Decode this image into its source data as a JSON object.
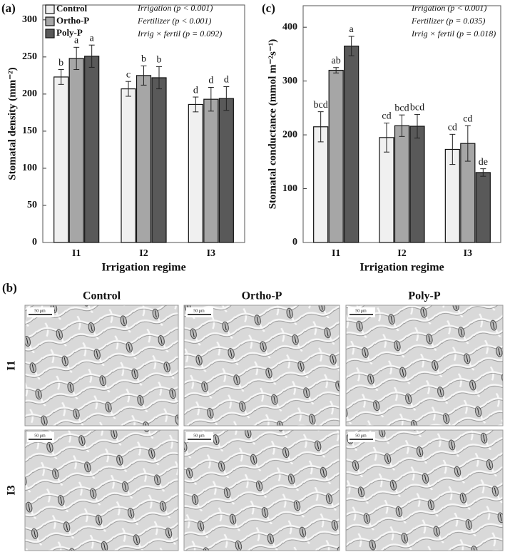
{
  "chart_data": [
    {
      "type": "bar",
      "panel_label": "(a)",
      "ylabel": "Stomatal density (mm⁻²)",
      "xlabel": "Irrigation regime",
      "categories": [
        "I1",
        "I2",
        "I3"
      ],
      "series": [
        {
          "name": "Control",
          "color": "#f0f0f0",
          "values": [
            223,
            207,
            186
          ],
          "errors": [
            10,
            10,
            10
          ],
          "letters": [
            "b",
            "c",
            "d"
          ]
        },
        {
          "name": "Ortho-P",
          "color": "#a6a6a6",
          "values": [
            248,
            225,
            193
          ],
          "errors": [
            15,
            13,
            16
          ],
          "letters": [
            "a",
            "b",
            "d"
          ]
        },
        {
          "name": "Poly-P",
          "color": "#595959",
          "values": [
            251,
            222,
            194
          ],
          "errors": [
            15,
            15,
            16
          ],
          "letters": [
            "a",
            "b",
            "d"
          ]
        }
      ],
      "annotations": [
        "Irrigation (p < 0.001)",
        "Fertilizer (p < 0.001)",
        "Irrig × fertil (p = 0.092)"
      ],
      "ylim": [
        0,
        320
      ],
      "yticks": [
        0,
        50,
        100,
        150,
        200,
        250,
        300
      ],
      "legend": "upper left"
    },
    {
      "type": "bar",
      "panel_label": "(c)",
      "ylabel": "Stomatal conductance (mmol m⁻²s⁻¹)",
      "xlabel": "Irrigation regime",
      "categories": [
        "I1",
        "I2",
        "I3"
      ],
      "series": [
        {
          "color": "#f0f0f0",
          "values": [
            215,
            195,
            173
          ],
          "errors": [
            28,
            27,
            28
          ],
          "letters": [
            "bcd",
            "cd",
            "cd"
          ]
        },
        {
          "color": "#a6a6a6",
          "values": [
            320,
            217,
            184
          ],
          "errors": [
            5,
            20,
            33
          ],
          "letters": [
            "ab",
            "bcd",
            "cd"
          ]
        },
        {
          "color": "#595959",
          "values": [
            365,
            216,
            130
          ],
          "errors": [
            18,
            22,
            7
          ],
          "letters": [
            "a",
            "bcd",
            "de"
          ]
        }
      ],
      "annotations": [
        "Irrigation (p < 0.001)",
        "Fertilizer (p = 0.035)",
        "Irrig × fertil (p = 0.018)"
      ],
      "ylim": [
        0,
        440
      ],
      "yticks": [
        0,
        100,
        200,
        300,
        400
      ]
    }
  ],
  "micrographs": {
    "panel_label": "(b)",
    "columns": [
      "Control",
      "Ortho-P",
      "Poly-P"
    ],
    "rows": [
      "I1",
      "I3"
    ],
    "scale_bar": "50 μm"
  }
}
